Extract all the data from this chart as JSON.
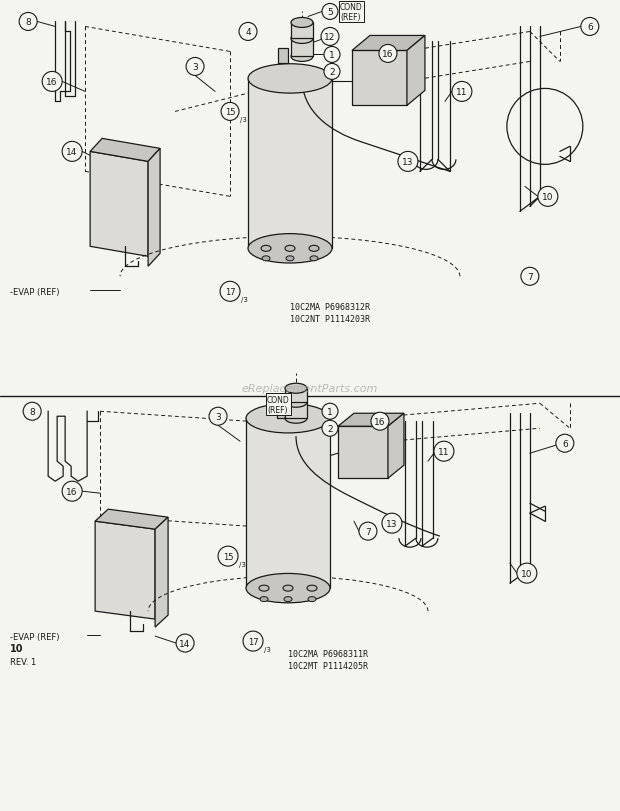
{
  "bg_color": "#f5f5f0",
  "line_color": "#1a1a1a",
  "fig_width": 6.2,
  "fig_height": 8.12,
  "dpi": 100,
  "top_model_line1": "10C2MA P6968312R",
  "top_model_line2": "10C2NT P1114203R",
  "bot_model_line1": "10C2MA P6968311R",
  "bot_model_line2": "10C2MT P1114205R",
  "watermark": "eReplacementParts.com"
}
